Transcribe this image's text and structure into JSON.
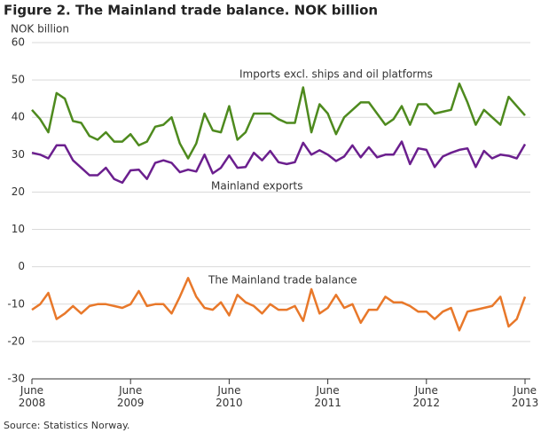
{
  "chart_data": {
    "type": "line",
    "title": "Figure 2. The Mainland trade balance. NOK billion",
    "y_label": "NOK billion",
    "source": "Source: Statistics Norway.",
    "categories": [
      "June 2008",
      null,
      null,
      null,
      null,
      null,
      null,
      null,
      null,
      null,
      null,
      null,
      "June 2009",
      null,
      null,
      null,
      null,
      null,
      null,
      null,
      null,
      null,
      null,
      null,
      "June 2010",
      null,
      null,
      null,
      null,
      null,
      null,
      null,
      null,
      null,
      null,
      null,
      "June 2011",
      null,
      null,
      null,
      null,
      null,
      null,
      null,
      null,
      null,
      null,
      null,
      "June 2012",
      null,
      null,
      null,
      null,
      null,
      null,
      null,
      null,
      null,
      null,
      null,
      "June 2013"
    ],
    "series": [
      {
        "name": "Imports excl. ships and oil platforms",
        "color": "#4e8a1e",
        "values": [
          42,
          39.5,
          36,
          46.5,
          45,
          39,
          38.5,
          35,
          34,
          36,
          33.5,
          33.5,
          35.5,
          32.5,
          33.5,
          37.5,
          38,
          40,
          33,
          29,
          33,
          41,
          36.5,
          36,
          43,
          34,
          36,
          41,
          41,
          41,
          39.5,
          38.5,
          38.5,
          48,
          36,
          43.5,
          41,
          35.5,
          40,
          42,
          44,
          44,
          41,
          38,
          39.5,
          43,
          38,
          43.5,
          43.5,
          41,
          41.5,
          42,
          49,
          44,
          38,
          42,
          40,
          38,
          45.5,
          43,
          40.5
        ]
      },
      {
        "name": "Mainland exports",
        "color": "#6b1f8e",
        "values": [
          30.5,
          30,
          29,
          32.5,
          32.5,
          28.5,
          26.5,
          24.5,
          24.5,
          26.5,
          23.5,
          22.5,
          25.8,
          26,
          23.5,
          27.8,
          28.5,
          27.8,
          25.3,
          26,
          25.5,
          30,
          25,
          26.5,
          29.8,
          26.5,
          26.7,
          30.5,
          28.5,
          31,
          28,
          27.5,
          28,
          33.2,
          30,
          31.2,
          30,
          28.3,
          29.5,
          32.5,
          29.3,
          32,
          29.3,
          30,
          30,
          33.5,
          27.5,
          31.7,
          31.3,
          26.7,
          29.5,
          30.5,
          31.3,
          31.7,
          26.7,
          31,
          29,
          30,
          29.7,
          29,
          32.8
        ]
      },
      {
        "name": "The Mainland trade balance",
        "color": "#e8782a",
        "values": [
          -11.5,
          -10,
          -7,
          -14,
          -12.5,
          -10.5,
          -12.5,
          -10.5,
          -10,
          -10,
          -10.5,
          -11,
          -10,
          -6.5,
          -10.5,
          -10,
          -10,
          -12.5,
          -8,
          -3,
          -8,
          -11,
          -11.5,
          -9.5,
          -13,
          -7.5,
          -9.5,
          -10.5,
          -12.5,
          -10,
          -11.5,
          -11.5,
          -10.5,
          -14.5,
          -6,
          -12.5,
          -11,
          -7.5,
          -11,
          -10,
          -15,
          -11.5,
          -11.5,
          -8,
          -9.5,
          -9.5,
          -10.5,
          -12,
          -12,
          -14,
          -12,
          -11,
          -17,
          -12,
          -11.5,
          -11,
          -10.5,
          -8,
          -16,
          -14,
          -8
        ]
      }
    ],
    "ylim": [
      -30,
      60
    ],
    "yticks": [
      -30,
      -20,
      -10,
      0,
      10,
      20,
      30,
      40,
      50,
      60
    ],
    "grid": true
  }
}
